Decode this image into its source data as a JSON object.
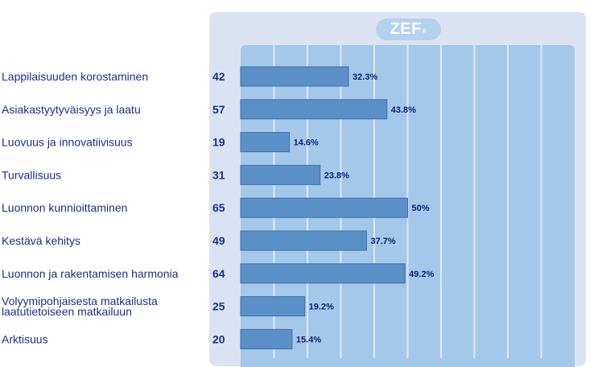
{
  "logo": {
    "text": "ZEF",
    "mark": "®"
  },
  "chart_data": {
    "type": "bar",
    "orientation": "horizontal",
    "categories": [
      "Lappilaisuuden korostaminen",
      "Asiakastyytyväisyys ja laatu",
      "Luovuus ja innovatiivisuus",
      "Turvallisuus",
      "Luonnon kunnioittaminen",
      "Kestävä kehitys",
      "Luonnon ja rakentamisen harmonia",
      "Volyymipohjaisesta matkailusta laatutietoiseen matkailuun",
      "Arktisuus"
    ],
    "category_lines": [
      [
        "Lappilaisuuden korostaminen"
      ],
      [
        "Asiakastyytyväisyys ja laatu"
      ],
      [
        "Luovuus ja innovatiivisuus"
      ],
      [
        "Turvallisuus"
      ],
      [
        "Luonnon kunnioittaminen"
      ],
      [
        "Kestävä kehitys"
      ],
      [
        "Luonnon ja rakentamisen harmonia"
      ],
      [
        "Volyymipohjaisesta matkailusta",
        "laatutietoiseen matkailuun"
      ],
      [
        "Arktisuus"
      ]
    ],
    "counts": [
      42,
      57,
      19,
      31,
      65,
      49,
      64,
      25,
      20
    ],
    "values": [
      32.3,
      43.8,
      14.6,
      23.8,
      50,
      37.7,
      49.2,
      19.2,
      15.4
    ],
    "value_labels": [
      "32.3%",
      "43.8%",
      "14.6%",
      "23.8%",
      "50%",
      "37.7%",
      "49.2%",
      "19.2%",
      "15.4%"
    ],
    "xlim": [
      0,
      100
    ],
    "grid": true,
    "colors": {
      "bar": "#5b8fc7",
      "bar_edge": "#3f6ea9",
      "plot_bg": "#a4c8e9",
      "panel_bg": "#dbe3f2",
      "text": "#1b2f8a"
    }
  }
}
